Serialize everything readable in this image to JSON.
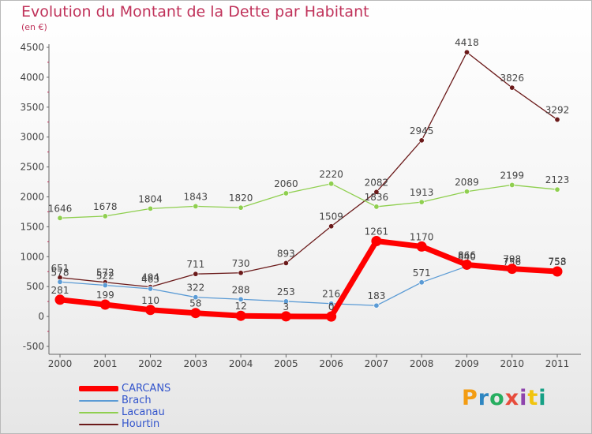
{
  "header": {
    "title": "Evolution du Montant de la Dette par Habitant",
    "subtitle": "(en €)"
  },
  "brand": {
    "name": "Proxiti",
    "letters": [
      "P",
      "r",
      "o",
      "x",
      "i",
      "t",
      "i"
    ],
    "letter_colors": [
      "#f39c12",
      "#2e86c1",
      "#27ae60",
      "#e74c3c",
      "#8e44ad",
      "#f1c40f",
      "#16a085"
    ]
  },
  "chart_data": {
    "type": "line",
    "x": [
      "2000",
      "2001",
      "2002",
      "2003",
      "2004",
      "2005",
      "2006",
      "2007",
      "2008",
      "2009",
      "2010",
      "2011"
    ],
    "ylim": [
      -500,
      4500
    ],
    "yticks": [
      -500,
      0,
      500,
      1000,
      1500,
      2000,
      2500,
      3000,
      3500,
      4000,
      4500
    ],
    "grid": false,
    "legend_position": "bottom-left",
    "series": [
      {
        "name": "Hourtin",
        "color": "#6b1a1a",
        "values": [
          651,
          572,
          494,
          711,
          730,
          893,
          1509,
          2082,
          2945,
          4418,
          3826,
          3292
        ]
      },
      {
        "name": "Lacanau",
        "color": "#8fcf4f",
        "values": [
          1646,
          1678,
          1804,
          1843,
          1820,
          2060,
          2220,
          1836,
          1913,
          2089,
          2199,
          2123
        ]
      },
      {
        "name": "Brach",
        "color": "#5b9bd5",
        "values": [
          578,
          522,
          463,
          322,
          288,
          253,
          216,
          183,
          571,
          840,
          756,
          758
        ]
      },
      {
        "name": "CARCANS",
        "color": "#ff0000",
        "values": [
          281,
          199,
          110,
          58,
          12,
          3,
          0,
          1261,
          1170,
          866,
          798,
          753
        ]
      }
    ],
    "legend_order": [
      "CARCANS",
      "Brach",
      "Lacanau",
      "Hourtin"
    ]
  }
}
